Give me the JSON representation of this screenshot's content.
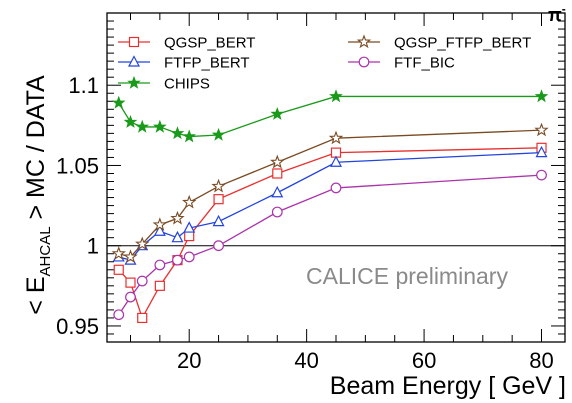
{
  "chart_data": {
    "type": "line",
    "title": "",
    "xlabel": "Beam Energy [ GeV ]",
    "ylabel_parts": {
      "pre": "< E",
      "sub": "AHCAL",
      "post": " > MC / DATA"
    },
    "xlim": [
      6,
      84
    ],
    "ylim": [
      0.94,
      1.145
    ],
    "xticks": [
      20,
      40,
      60,
      80
    ],
    "xtick_labels": [
      "20",
      "40",
      "60",
      "80"
    ],
    "yticks": [
      0.95,
      1.0,
      1.05,
      1.1
    ],
    "ytick_labels": [
      "0.95",
      "1",
      "1.05",
      "1.1"
    ],
    "reference_line": 1.0,
    "grid": false,
    "legend_placement": "top",
    "annotation": "CALICE preliminary",
    "corner_label": {
      "base": "π",
      "sup": "-"
    },
    "series": [
      {
        "name": "QGSP_BERT",
        "color": "#e8302f",
        "marker": "square",
        "x": [
          8,
          10,
          12,
          15,
          18,
          20,
          25,
          35,
          45,
          80
        ],
        "y": [
          0.985,
          0.977,
          0.955,
          0.975,
          0.991,
          1.006,
          1.029,
          1.045,
          1.058,
          1.061
        ]
      },
      {
        "name": "FTFP_BERT",
        "color": "#2244dd",
        "marker": "triangle",
        "x": [
          8,
          10,
          12,
          15,
          18,
          20,
          25,
          35,
          45,
          80
        ],
        "y": [
          0.993,
          0.991,
          1.0,
          1.009,
          1.005,
          1.011,
          1.015,
          1.033,
          1.052,
          1.058
        ]
      },
      {
        "name": "CHIPS",
        "color": "#1a9a1a",
        "marker": "star-filled",
        "x": [
          8,
          10,
          12,
          15,
          18,
          20,
          25,
          35,
          45,
          80
        ],
        "y": [
          1.089,
          1.077,
          1.074,
          1.074,
          1.07,
          1.068,
          1.069,
          1.082,
          1.093,
          1.093
        ]
      },
      {
        "name": "QGSP_FTFP_BERT",
        "color": "#7a4a22",
        "marker": "star-open",
        "x": [
          8,
          10,
          12,
          15,
          18,
          20,
          25,
          35,
          45,
          80
        ],
        "y": [
          0.995,
          0.993,
          1.001,
          1.013,
          1.017,
          1.027,
          1.037,
          1.052,
          1.067,
          1.072
        ]
      },
      {
        "name": "FTF_BIC",
        "color": "#aa33aa",
        "marker": "circle",
        "x": [
          8,
          10,
          12,
          15,
          18,
          20,
          25,
          35,
          45,
          80
        ],
        "y": [
          0.957,
          0.968,
          0.978,
          0.988,
          0.991,
          0.993,
          1.0,
          1.021,
          1.036,
          1.044
        ]
      }
    ]
  }
}
